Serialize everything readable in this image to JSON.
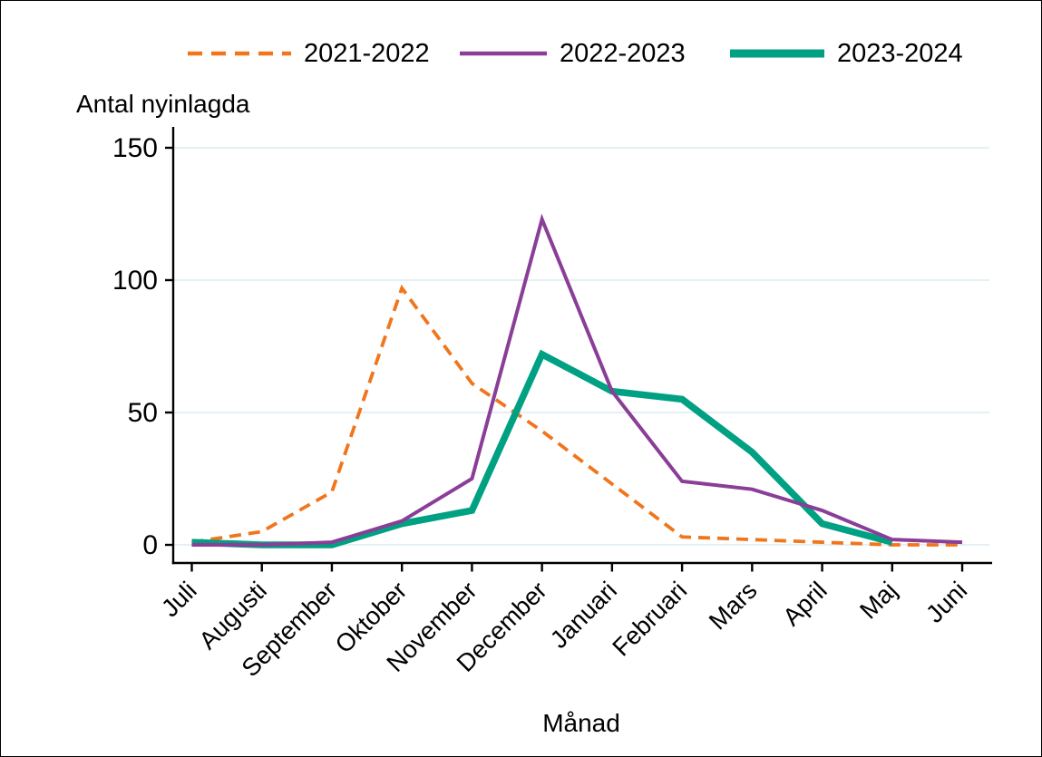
{
  "chart_data": {
    "type": "line",
    "title": "",
    "ylabel": "Antal nyinlagda",
    "xlabel": "Månad",
    "categories": [
      "Juli",
      "Augusti",
      "September",
      "Oktober",
      "November",
      "December",
      "Januari",
      "Februari",
      "Mars",
      "April",
      "Maj",
      "Juni"
    ],
    "yticks": [
      0,
      50,
      100,
      150
    ],
    "ylim": [
      0,
      157
    ],
    "grid": "horizontal",
    "legend_position": "top",
    "series": [
      {
        "name": "2021-2022",
        "color": "#f0761d",
        "style": "dashed",
        "width": 3.8,
        "values": [
          1,
          5,
          20,
          97,
          61,
          43,
          23,
          3,
          2,
          1,
          0,
          0
        ]
      },
      {
        "name": "2023-2024",
        "color": "#00a183",
        "style": "solid",
        "width": 7.5,
        "values": [
          1,
          0,
          0,
          8,
          13,
          72,
          58,
          55,
          35,
          8,
          1,
          null
        ]
      },
      {
        "name": "2022-2023",
        "color": "#8a3e97",
        "style": "solid",
        "width": 4,
        "values": [
          0,
          0,
          1,
          9,
          25,
          123,
          58,
          24,
          21,
          13,
          2,
          1
        ]
      }
    ],
    "legend_order": [
      "2021-2022",
      "2022-2023",
      "2023-2024"
    ]
  },
  "style": {
    "axis_color": "#000000",
    "grid_color": "#e3eef3",
    "background": "#ffffff"
  }
}
